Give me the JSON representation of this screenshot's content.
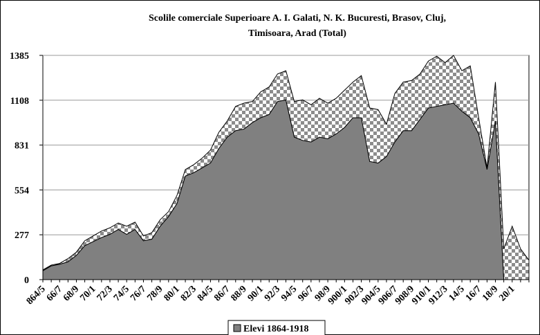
{
  "chart_data": {
    "type": "stacked_area",
    "title": "Scolile comerciale Superioare A. I. Galati, N. K. Bucuresti, Brasov, Cluj,",
    "subtitle": "Timisoara, Arad (Total)",
    "categories": [
      "864/5",
      null,
      "66/7",
      null,
      "68/9",
      null,
      "70/1",
      null,
      "72/3",
      null,
      "74/5",
      null,
      "76/7",
      null,
      "78/9",
      null,
      "80/1",
      null,
      "82/3",
      null,
      "84/5",
      null,
      "86/7",
      null,
      "88/9",
      null,
      "90/1",
      null,
      "92/3",
      null,
      "94/5",
      null,
      "96/7",
      null,
      "98/9",
      null,
      "900/1",
      null,
      "902/3",
      null,
      "904/5",
      null,
      "906/7",
      null,
      "908/9",
      null,
      "910/1",
      null,
      "912/3",
      null,
      "14/5",
      null,
      "16/7",
      null,
      "18/9",
      null,
      "20/1",
      null,
      null
    ],
    "series": [
      {
        "name": "Elevi 1864-1918",
        "color": "#808080",
        "values": [
          55,
          85,
          95,
          110,
          150,
          210,
          235,
          260,
          280,
          310,
          280,
          310,
          240,
          250,
          330,
          390,
          470,
          640,
          660,
          690,
          720,
          810,
          880,
          920,
          930,
          970,
          1000,
          1020,
          1100,
          1110,
          880,
          860,
          850,
          880,
          870,
          900,
          940,
          1000,
          1000,
          730,
          720,
          760,
          850,
          920,
          920,
          990,
          1060,
          1070,
          1080,
          1090,
          1040,
          1000,
          900,
          680,
          980,
          0,
          0,
          0,
          0
        ]
      },
      {
        "color": "#808080",
        "pattern": "checker",
        "values": [
          5,
          5,
          5,
          20,
          20,
          30,
          35,
          40,
          40,
          40,
          50,
          45,
          30,
          40,
          40,
          30,
          50,
          40,
          50,
          60,
          80,
          100,
          100,
          150,
          160,
          130,
          160,
          170,
          170,
          180,
          220,
          250,
          230,
          240,
          220,
          220,
          230,
          220,
          260,
          330,
          330,
          200,
          300,
          300,
          310,
          280,
          290,
          310,
          260,
          295,
          250,
          320,
          100,
          10,
          240,
          190,
          330,
          190,
          120
        ]
      }
    ],
    "ylim": [
      0,
      1385
    ],
    "yticks": [
      0,
      277,
      554,
      831,
      1108,
      1385
    ],
    "grid": true
  }
}
